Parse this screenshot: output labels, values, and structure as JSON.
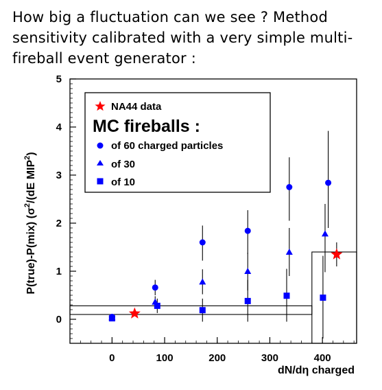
{
  "heading": {
    "line1": "How big a fluctuation can we see ?  Method",
    "line2": "sensitivity calibrated with a very simple multi-",
    "line3": "fireball event generator :"
  },
  "chart_data": {
    "type": "scatter",
    "xlabel": "dN/dη charged",
    "ylabel": "P(true)-P(mix) (σ²/(dE MIP ²)",
    "ylabel_parts": {
      "a": "P(true)-P(mix) (σ",
      "sup1": "2",
      "b": "/(dE MIP",
      "sup2": "2",
      "c": ")"
    },
    "xlim": [
      -80,
      465
    ],
    "ylim": [
      -0.5,
      5
    ],
    "xticks": [
      0,
      100,
      200,
      300,
      400
    ],
    "yticks": [
      0,
      1,
      2,
      3,
      4,
      5
    ],
    "grid": false,
    "legend_position": "top-left",
    "legend": {
      "data_label": "NA44 data",
      "mc_title": "MC fireballs :",
      "entries": [
        "of 60 charged particles",
        "of 30",
        "of 10"
      ]
    },
    "colors": {
      "mc": "#0000ff",
      "data": "#ff0000",
      "axis": "#000000"
    },
    "series": [
      {
        "name": "of 60 charged particles",
        "marker": "circle",
        "points": [
          {
            "x": 0,
            "y": 0.05,
            "lo": 0.0,
            "hi": 0.1
          },
          {
            "x": 82,
            "y": 0.66,
            "lo": 0.5,
            "hi": 0.82
          },
          {
            "x": 172,
            "y": 1.6,
            "lo": 1.22,
            "hi": 1.95
          },
          {
            "x": 258,
            "y": 1.84,
            "lo": 1.36,
            "hi": 2.27
          },
          {
            "x": 337,
            "y": 2.75,
            "lo": 2.05,
            "hi": 3.37
          },
          {
            "x": 411,
            "y": 2.84,
            "lo": 1.9,
            "hi": 3.92
          }
        ]
      },
      {
        "name": "of 30",
        "marker": "triangle",
        "points": [
          {
            "x": 0,
            "y": 0.04,
            "lo": 0.0,
            "hi": 0.08
          },
          {
            "x": 82,
            "y": 0.36,
            "lo": 0.25,
            "hi": 0.48
          },
          {
            "x": 172,
            "y": 0.78,
            "lo": 0.52,
            "hi": 1.04
          },
          {
            "x": 258,
            "y": 1.0,
            "lo": 0.6,
            "hi": 1.38
          },
          {
            "x": 337,
            "y": 1.4,
            "lo": 0.9,
            "hi": 1.9
          },
          {
            "x": 405,
            "y": 1.78,
            "lo": 0.98,
            "hi": 2.4
          }
        ]
      },
      {
        "name": "of 10",
        "marker": "square",
        "points": [
          {
            "x": 0,
            "y": 0.02,
            "lo": 0.0,
            "hi": 0.04
          },
          {
            "x": 86,
            "y": 0.28,
            "lo": 0.13,
            "hi": 0.43
          },
          {
            "x": 172,
            "y": 0.19,
            "lo": -0.05,
            "hi": 0.43
          },
          {
            "x": 258,
            "y": 0.38,
            "lo": -0.05,
            "hi": 0.82
          },
          {
            "x": 332,
            "y": 0.49,
            "lo": -0.05,
            "hi": 1.05
          },
          {
            "x": 401,
            "y": 0.45,
            "lo": -0.4,
            "hi": 1.32
          }
        ]
      }
    ],
    "data_points": [
      {
        "x": 43,
        "y": 0.12,
        "lo": 0.07,
        "hi": 0.17
      },
      {
        "x": 427,
        "y": 1.35,
        "lo": 1.1,
        "hi": 1.6
      }
    ],
    "bands": [
      {
        "x0": -80,
        "x1": 380,
        "y0": 0.1,
        "y1": 0.28
      },
      {
        "x0": 380,
        "x1": 465,
        "y0": -0.5,
        "y1": 1.4
      }
    ]
  }
}
